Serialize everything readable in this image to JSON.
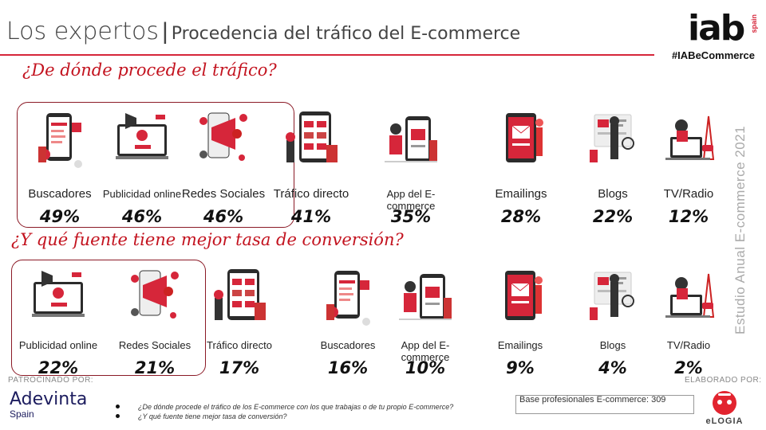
{
  "header": {
    "title": "Los expertos",
    "separator": "|",
    "subtitle": "Procedencia del tráfico del E-commerce",
    "logo_text": "iab",
    "logo_region": "spain",
    "hashtag": "#IABeCommerce"
  },
  "vertical_label": "Estudio Anual E-commerce  2021",
  "section_traffic": {
    "question": "¿De dónde procede el tráfico?",
    "items": [
      {
        "label": "Buscadores",
        "value": "49%",
        "icon": "search-engine-icon"
      },
      {
        "label": "Publicidad online",
        "value": "46%",
        "icon": "online-ads-icon"
      },
      {
        "label": "Redes Sociales",
        "value": "46%",
        "icon": "social-media-icon"
      },
      {
        "label": "Tráfico directo",
        "value": "41%",
        "icon": "direct-traffic-icon"
      },
      {
        "label": "App del E-commerce",
        "value": "35%",
        "icon": "ecommerce-app-icon"
      },
      {
        "label": "Emailings",
        "value": "28%",
        "icon": "email-icon"
      },
      {
        "label": "Blogs",
        "value": "22%",
        "icon": "blog-icon"
      },
      {
        "label": "TV/Radio",
        "value": "12%",
        "icon": "tv-radio-icon"
      }
    ]
  },
  "section_conversion": {
    "question": "¿Y qué fuente tiene mejor tasa de conversión?",
    "items": [
      {
        "label": "Publicidad online",
        "value": "22%",
        "icon": "online-ads-icon"
      },
      {
        "label": "Redes Sociales",
        "value": "21%",
        "icon": "social-media-icon"
      },
      {
        "label": "Tráfico directo",
        "value": "17%",
        "icon": "direct-traffic-icon"
      },
      {
        "label": "Buscadores",
        "value": "16%",
        "icon": "search-engine-icon"
      },
      {
        "label": "App del E-commerce",
        "value": "10%",
        "icon": "ecommerce-app-icon"
      },
      {
        "label": "Emailings",
        "value": "9%",
        "icon": "email-icon"
      },
      {
        "label": "Blogs",
        "value": "4%",
        "icon": "blog-icon"
      },
      {
        "label": "TV/Radio",
        "value": "2%",
        "icon": "tv-radio-icon"
      }
    ]
  },
  "footer": {
    "sponsor_label": "PATROCINADO POR:",
    "sponsor_name": "Adevinta",
    "sponsor_sub": "Spain",
    "notes": [
      "¿De dónde procede el tráfico de los E-commerce con los que trabajas o de tu propio E-commerce?",
      "¿Y qué fuente tiene mejor tasa de conversión?"
    ],
    "base": "Base profesionales E-commerce: 309",
    "made_by_label": "ELABORADO  POR:",
    "made_by_name": "eLOGIA"
  },
  "colors": {
    "accent": "#d6263a",
    "accent_dark": "#8b1a26",
    "question": "#c3131f"
  }
}
